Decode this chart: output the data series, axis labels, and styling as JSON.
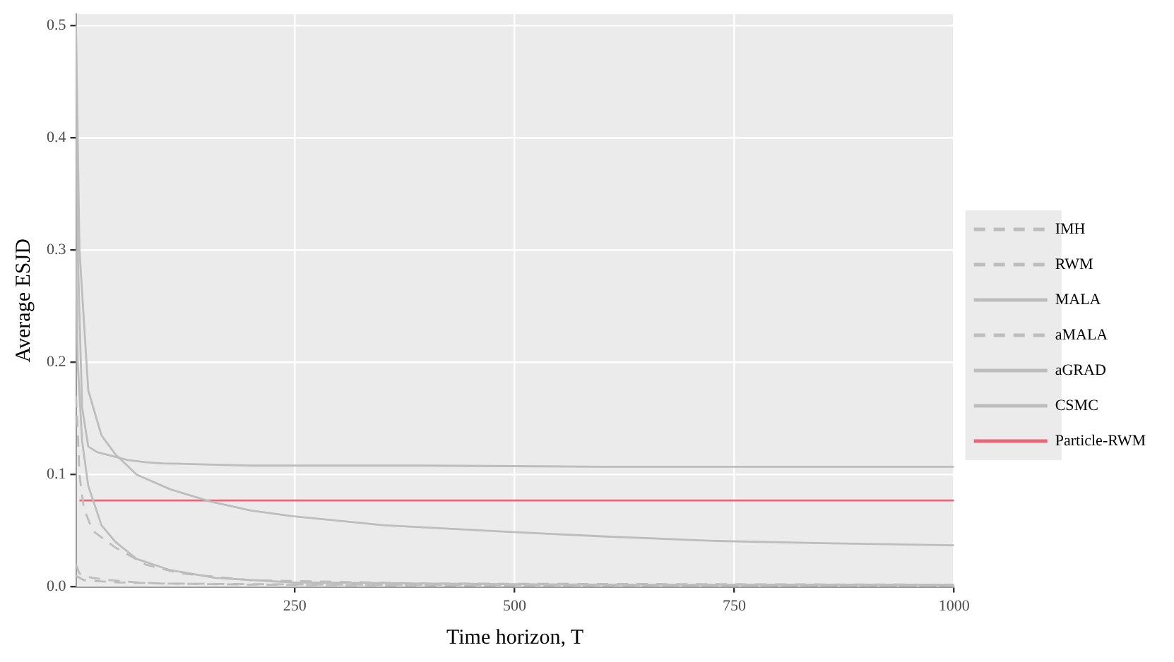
{
  "chart_data": {
    "type": "line",
    "xlabel": "Time horizon, T",
    "ylabel": "Average ESJD",
    "xlim": [
      1,
      1000
    ],
    "xticks": [
      250,
      500,
      750,
      1000
    ],
    "ylim": [
      0,
      0.51
    ],
    "yticks": [
      {
        "value": 0,
        "label": "0.0"
      },
      0.1,
      0.2,
      0.3,
      0.4,
      0.5
    ],
    "grid": true,
    "legend": "right",
    "marker": "none",
    "series": [
      {
        "name": "IMH",
        "color": "#bdbdbd",
        "line_style": "dashed",
        "x": [
          1,
          5,
          10,
          20,
          40,
          70,
          100,
          200,
          500,
          1000
        ],
        "values": [
          0.02,
          0.012,
          0.01,
          0.008,
          0.006,
          0.004,
          0.003,
          0.002,
          0.001,
          0.001
        ]
      },
      {
        "name": "RWM",
        "color": "#bdbdbd",
        "line_style": "dashed",
        "x": [
          1,
          10,
          50,
          100,
          300,
          1000
        ],
        "values": [
          0.01,
          0.006,
          0.004,
          0.003,
          0.002,
          0.001
        ]
      },
      {
        "name": "MALA",
        "color": "#bdbdbd",
        "line_style": "solid",
        "x": [
          1,
          3,
          8,
          15,
          30,
          46,
          70,
          108,
          160,
          247,
          400,
          600,
          1000
        ],
        "values": [
          0.3,
          0.2,
          0.13,
          0.09,
          0.055,
          0.04,
          0.025,
          0.015,
          0.008,
          0.004,
          0.003,
          0.002,
          0.002
        ]
      },
      {
        "name": "aMALA",
        "color": "#bdbdbd",
        "line_style": "dashed",
        "x": [
          1,
          3,
          5,
          10,
          20,
          46,
          80,
          120,
          200,
          400,
          1000
        ],
        "values": [
          0.17,
          0.14,
          0.1,
          0.07,
          0.05,
          0.035,
          0.02,
          0.012,
          0.006,
          0.003,
          0.002
        ]
      },
      {
        "name": "aGRAD",
        "color": "#bdbdbd",
        "line_style": "solid",
        "x": [
          1,
          5,
          15,
          30,
          46,
          70,
          108,
          154,
          200,
          247,
          350,
          494,
          600,
          726,
          850,
          1000
        ],
        "values": [
          0.5,
          0.3,
          0.175,
          0.135,
          0.118,
          0.1,
          0.087,
          0.076,
          0.068,
          0.063,
          0.055,
          0.049,
          0.045,
          0.041,
          0.039,
          0.037
        ]
      },
      {
        "name": "CSMC",
        "color": "#bdbdbd",
        "line_style": "solid",
        "x": [
          1,
          3,
          8,
          15,
          25,
          40,
          60,
          80,
          100,
          150,
          200,
          300,
          400,
          600,
          800,
          1000
        ],
        "values": [
          0.5,
          0.3,
          0.16,
          0.125,
          0.12,
          0.117,
          0.113,
          0.111,
          0.11,
          0.109,
          0.108,
          0.108,
          0.108,
          0.107,
          0.107,
          0.107
        ]
      },
      {
        "name": "Particle-RWM",
        "color": "#e8687a",
        "line_style": "solid",
        "x": [
          5,
          1000
        ],
        "values": [
          0.077,
          0.077
        ]
      }
    ]
  }
}
